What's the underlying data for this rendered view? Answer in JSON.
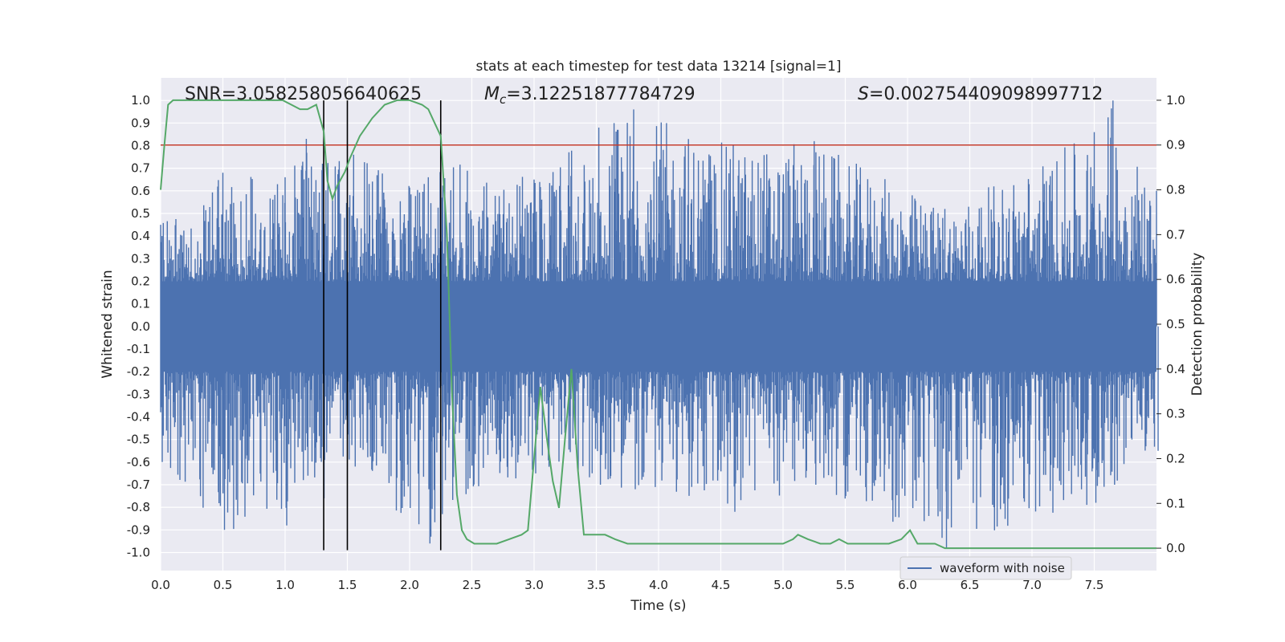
{
  "chart_data": {
    "type": "line",
    "title": "stats at each timestep for test data 13214 [signal=1]",
    "xlabel": "Time (s)",
    "ylabel_left": "Whitened strain",
    "ylabel_right": "Detection probability",
    "xlim": [
      0.0,
      8.0
    ],
    "ylim_left": [
      -1.08,
      1.1
    ],
    "ylim_right": [
      -0.05,
      1.05
    ],
    "x_ticks": [
      "0.0",
      "0.5",
      "1.0",
      "1.5",
      "2.0",
      "2.5",
      "3.0",
      "3.5",
      "4.0",
      "4.5",
      "5.0",
      "5.5",
      "6.0",
      "6.5",
      "7.0",
      "7.5"
    ],
    "y_ticks_left": [
      "-1.0",
      "-0.9",
      "-0.8",
      "-0.7",
      "-0.6",
      "-0.5",
      "-0.4",
      "-0.3",
      "-0.2",
      "-0.1",
      "0.0",
      "0.1",
      "0.2",
      "0.3",
      "0.4",
      "0.5",
      "0.6",
      "0.7",
      "0.8",
      "0.9",
      "1.0"
    ],
    "y_ticks_right": [
      "0.0",
      "0.1",
      "0.2",
      "0.3",
      "0.4",
      "0.5",
      "0.6",
      "0.7",
      "0.8",
      "0.9",
      "1.0"
    ],
    "grid": true,
    "legend_position": "bottom-right",
    "annotations": {
      "snr": "SNR=3.058258056640625",
      "mc_symbol": "M",
      "mc_sub": "c",
      "mc_value": "=3.12251877784729",
      "s_symbol": "S",
      "s_value": "=0.002754409098997712"
    },
    "threshold": {
      "axis": "right",
      "value": 0.9,
      "color": "#c0392b"
    },
    "vertical_lines": [
      1.31,
      1.5,
      2.25
    ],
    "series": [
      {
        "name": "waveform with noise",
        "axis": "left",
        "color": "#4c72b0",
        "note": "noise envelope summary (approximate extremes per region)",
        "x": [
          0.0,
          0.5,
          1.0,
          1.17,
          1.3,
          1.55,
          2.15,
          2.25,
          3.0,
          3.52,
          3.8,
          4.6,
          5.25,
          6.3,
          7.5,
          7.65,
          8.0
        ],
        "max": [
          0.45,
          0.68,
          0.66,
          0.83,
          0.72,
          0.76,
          0.66,
          0.78,
          0.65,
          0.88,
          0.96,
          0.8,
          0.82,
          0.52,
          0.86,
          1.0,
          0.6
        ],
        "min": [
          -0.6,
          -0.9,
          -0.88,
          -0.66,
          -0.76,
          -0.62,
          -0.96,
          -0.83,
          -0.65,
          -0.7,
          -0.72,
          -0.82,
          -0.7,
          -0.98,
          -0.78,
          -0.7,
          -0.55
        ]
      },
      {
        "name": "",
        "axis": "right",
        "color": "#55a868",
        "x": [
          0.0,
          0.03,
          0.06,
          0.1,
          0.15,
          0.3,
          0.6,
          0.9,
          0.98,
          1.05,
          1.12,
          1.18,
          1.25,
          1.31,
          1.34,
          1.38,
          1.42,
          1.48,
          1.52,
          1.6,
          1.7,
          1.8,
          1.9,
          2.0,
          2.1,
          2.15,
          2.2,
          2.25,
          2.3,
          2.34,
          2.38,
          2.42,
          2.46,
          2.52,
          2.6,
          2.7,
          2.8,
          2.9,
          2.95,
          3.0,
          3.05,
          3.1,
          3.15,
          3.2,
          3.25,
          3.3,
          3.35,
          3.4,
          3.5,
          3.57,
          3.65,
          3.75,
          3.85,
          4.0,
          4.2,
          4.4,
          4.6,
          4.8,
          5.0,
          5.08,
          5.12,
          5.2,
          5.3,
          5.38,
          5.45,
          5.52,
          5.62,
          5.7,
          5.85,
          5.95,
          6.02,
          6.08,
          6.15,
          6.22,
          6.3,
          6.5,
          6.8,
          7.0,
          7.2,
          7.5,
          7.7,
          8.0
        ],
        "y": [
          0.8,
          0.9,
          0.99,
          1.0,
          1.0,
          1.0,
          1.0,
          1.0,
          1.0,
          0.99,
          0.98,
          0.98,
          0.99,
          0.93,
          0.82,
          0.78,
          0.81,
          0.84,
          0.87,
          0.92,
          0.96,
          0.99,
          1.0,
          1.0,
          0.99,
          0.98,
          0.95,
          0.92,
          0.7,
          0.35,
          0.12,
          0.04,
          0.02,
          0.01,
          0.01,
          0.01,
          0.02,
          0.03,
          0.04,
          0.2,
          0.36,
          0.25,
          0.15,
          0.09,
          0.25,
          0.4,
          0.18,
          0.03,
          0.03,
          0.03,
          0.02,
          0.01,
          0.01,
          0.01,
          0.01,
          0.01,
          0.01,
          0.01,
          0.01,
          0.02,
          0.03,
          0.02,
          0.01,
          0.01,
          0.02,
          0.01,
          0.01,
          0.01,
          0.01,
          0.02,
          0.04,
          0.01,
          0.01,
          0.01,
          0.0,
          0.0,
          0.0,
          0.0,
          0.0,
          0.0,
          0.0,
          0.0
        ]
      }
    ]
  }
}
